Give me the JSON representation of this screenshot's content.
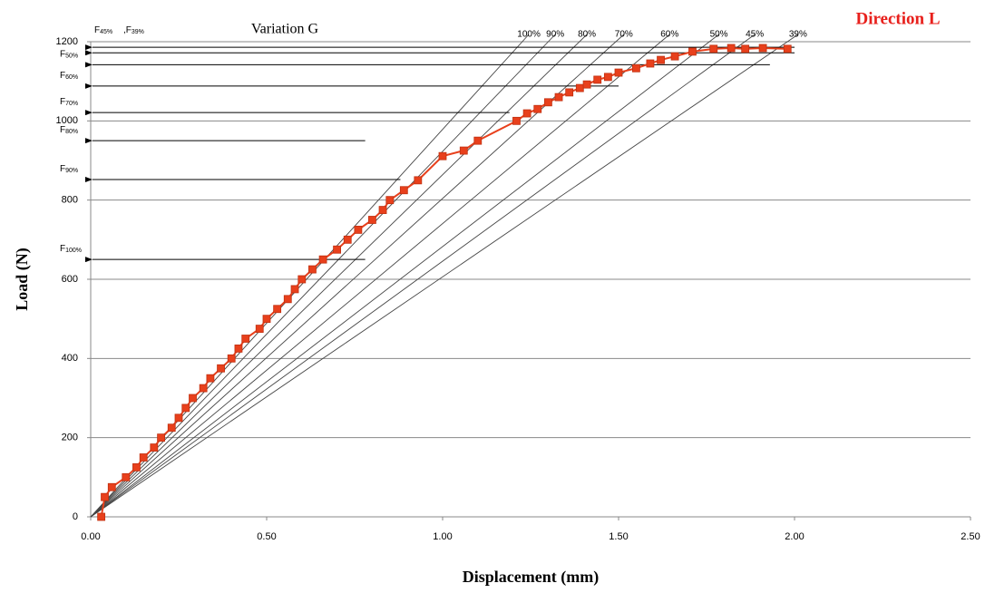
{
  "chart_data": {
    "type": "line",
    "title": "Variation G",
    "subtitle": "Direction L",
    "x_label": "Displacement (mm)",
    "y_label": "Load (N)",
    "xlim": [
      0,
      2.5
    ],
    "ylim": [
      0,
      1200
    ],
    "xticks": [
      {
        "value": 0,
        "label": "0.00"
      },
      {
        "value": 0.5,
        "label": "0.50"
      },
      {
        "value": 1,
        "label": "1.00"
      },
      {
        "value": 1.5,
        "label": "1.50"
      },
      {
        "value": 2,
        "label": "2.00"
      },
      {
        "value": 2.5,
        "label": "2.50"
      }
    ],
    "yticks": [
      0,
      200,
      400,
      600,
      800,
      1000,
      1200
    ],
    "grid": true,
    "series": [
      {
        "color": "#e8401c",
        "x": [
          0.03,
          0.04,
          0.06,
          0.1,
          0.13,
          0.15,
          0.18,
          0.2,
          0.23,
          0.25,
          0.27,
          0.29,
          0.32,
          0.34,
          0.37,
          0.4,
          0.42,
          0.44,
          0.48,
          0.5,
          0.53,
          0.56,
          0.58,
          0.6,
          0.63,
          0.66,
          0.7,
          0.73,
          0.76,
          0.8,
          0.83,
          0.85,
          0.89,
          0.93,
          1.0,
          1.06,
          1.1,
          1.21,
          1.24,
          1.27,
          1.3,
          1.33,
          1.36,
          1.39,
          1.41,
          1.44,
          1.47,
          1.5,
          1.55,
          1.59,
          1.62,
          1.66,
          1.71,
          1.77,
          1.82,
          1.86,
          1.91,
          1.98
        ],
        "values": [
          0,
          50,
          75,
          100,
          125,
          150,
          175,
          200,
          225,
          250,
          275,
          300,
          325,
          350,
          375,
          400,
          425,
          450,
          475,
          500,
          525,
          550,
          575,
          600,
          625,
          650,
          675,
          700,
          725,
          750,
          775,
          800,
          825,
          850,
          911,
          925,
          950,
          1000,
          1019,
          1030,
          1047,
          1060,
          1072,
          1083,
          1092,
          1104,
          1111,
          1122,
          1133,
          1145,
          1154,
          1163,
          1175,
          1182,
          1184,
          1182,
          1184,
          1182
        ]
      }
    ],
    "secants": [
      {
        "label": "100%",
        "x": 1.245
      },
      {
        "label": "90%",
        "x": 1.32
      },
      {
        "label": "80%",
        "x": 1.41
      },
      {
        "label": "70%",
        "x": 1.515
      },
      {
        "label": "60%",
        "x": 1.645
      },
      {
        "label": "50%",
        "x": 1.785
      },
      {
        "label": "45%",
        "x": 1.887
      },
      {
        "label": "39%",
        "x": 2.01
      }
    ],
    "arrows": [
      {
        "prefix": "F",
        "sub": "45%",
        "load": 1186,
        "x": 2.0
      },
      {
        "prefix": " ,F",
        "sub": "39%",
        "load": 1172,
        "x": 2.0
      },
      {
        "prefix": "F",
        "sub": "50%",
        "load": 1142,
        "x": 1.93
      },
      {
        "prefix": "F",
        "sub": "60%",
        "load": 1088,
        "x": 1.5
      },
      {
        "prefix": "F",
        "sub": "70%",
        "load": 1021,
        "x": 1.19
      },
      {
        "prefix": "F",
        "sub": "80%",
        "load": 950,
        "x": 0.78
      },
      {
        "prefix": "F",
        "sub": "90%",
        "load": 852,
        "x": 0.88
      },
      {
        "prefix": "F",
        "sub": "100%",
        "load": 650,
        "x": 0.78
      }
    ]
  }
}
